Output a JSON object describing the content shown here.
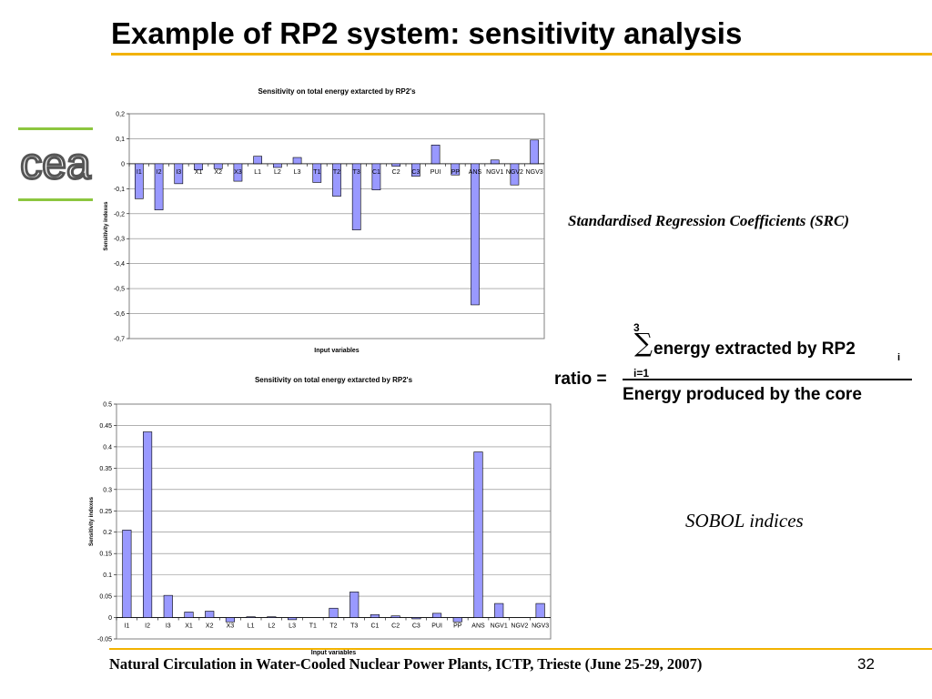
{
  "slide": {
    "title": "Example of RP2 system: sensitivity analysis",
    "footer": "Natural Circulation in Water-Cooled Nuclear Power Plants, ICTP,    Trieste (June 25-29, 2007)",
    "page_number": "32",
    "logo_text": "cea",
    "src_label": "Standardised Regression Coefficients (SRC)",
    "sobol_label": "SOBOL indices",
    "accent_color": "#f2b200",
    "logo_color": "#8cc63f"
  },
  "formula": {
    "upper_limit": "3",
    "sigma": "∑",
    "numerator": "energy extracted by RP2",
    "subscript": "i",
    "lower_limit": "i=1",
    "lhs": "ratio =",
    "denominator": "Energy produced by the core"
  },
  "chart_data": [
    {
      "type": "bar",
      "title": "Sensitivity on total energy extarcted by RP2's",
      "xlabel": "Input variables",
      "ylabel": "Sensitivity indexes",
      "ylim": [
        -0.7,
        0.2
      ],
      "yticks": [
        0.2,
        0.1,
        0,
        -0.1,
        -0.2,
        -0.3,
        -0.4,
        -0.5,
        -0.6,
        -0.7
      ],
      "ytick_labels": [
        "0,2",
        "0,1",
        "0",
        "-0,1",
        "-0,2",
        "-0,3",
        "-0,4",
        "-0,5",
        "-0,6",
        "-0,7"
      ],
      "grid": true,
      "bar_color": "#9999ff",
      "categories": [
        "I1",
        "I2",
        "I3",
        "X1",
        "X2",
        "X3",
        "L1",
        "L2",
        "L3",
        "T1",
        "T2",
        "T3",
        "C1",
        "C2",
        "C3",
        "PUI",
        "PP",
        "ANS",
        "NGV1",
        "NGV2",
        "NGV3"
      ],
      "values": [
        -0.14,
        -0.185,
        -0.08,
        -0.025,
        -0.02,
        -0.07,
        0.03,
        -0.015,
        0.025,
        -0.075,
        -0.13,
        -0.265,
        -0.105,
        -0.01,
        -0.05,
        0.075,
        -0.045,
        -0.565,
        0.015,
        -0.085,
        0.095
      ]
    },
    {
      "type": "bar",
      "title": "Sensitivity on total energy extarcted by RP2's",
      "xlabel": "Input variables",
      "ylabel": "Sensitivity indexes",
      "ylim": [
        -0.05,
        0.5
      ],
      "yticks": [
        0.5,
        0.45,
        0.4,
        0.35,
        0.3,
        0.25,
        0.2,
        0.15,
        0.1,
        0.05,
        0,
        -0.05
      ],
      "ytick_labels": [
        "0.5",
        "0.45",
        "0.4",
        "0.35",
        "0.3",
        "0.25",
        "0.2",
        "0.15",
        "0.1",
        "0.05",
        "0",
        "-0.05"
      ],
      "grid": true,
      "bar_color": "#9999ff",
      "categories": [
        "I1",
        "I2",
        "I3",
        "X1",
        "X2",
        "X3",
        "L1",
        "L2",
        "L3",
        "T1",
        "T2",
        "T3",
        "C1",
        "C2",
        "C3",
        "PUI",
        "PP",
        "ANS",
        "NGV1",
        "NGV2",
        "NGV3"
      ],
      "values": [
        0.205,
        0.435,
        0.052,
        0.013,
        0.015,
        -0.01,
        0.002,
        0.002,
        -0.005,
        0,
        0.022,
        0.06,
        0.007,
        0.004,
        -0.003,
        0.01,
        -0.01,
        0.388,
        0.033,
        0,
        0.033
      ]
    }
  ]
}
